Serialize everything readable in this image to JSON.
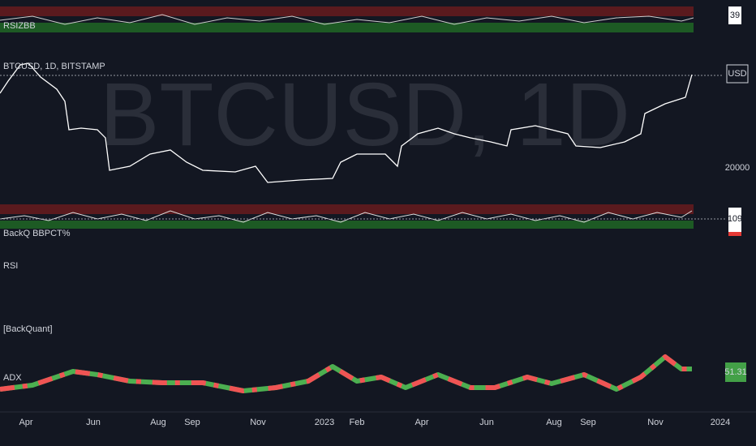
{
  "watermark": "BTCUSD, 1D",
  "panes": [
    {
      "label": "RSIZBB",
      "value_badge": "39"
    },
    {
      "label": "BTCUSD, 1D, BITSTAMP",
      "axis_labels": [
        "USD",
        "20000"
      ]
    },
    {
      "label": "BackQ BBPCT%",
      "value_badge": "109"
    },
    {
      "label": "RSI"
    },
    {
      "label": "[BackQuant]"
    },
    {
      "label": "ADX",
      "value_badge": "51.31"
    }
  ],
  "time_axis": [
    "Apr",
    "Jun",
    "Aug",
    "Sep",
    "Nov",
    "2023",
    "Feb",
    "Apr",
    "Jun",
    "Aug",
    "Sep",
    "Nov",
    "2024"
  ]
}
